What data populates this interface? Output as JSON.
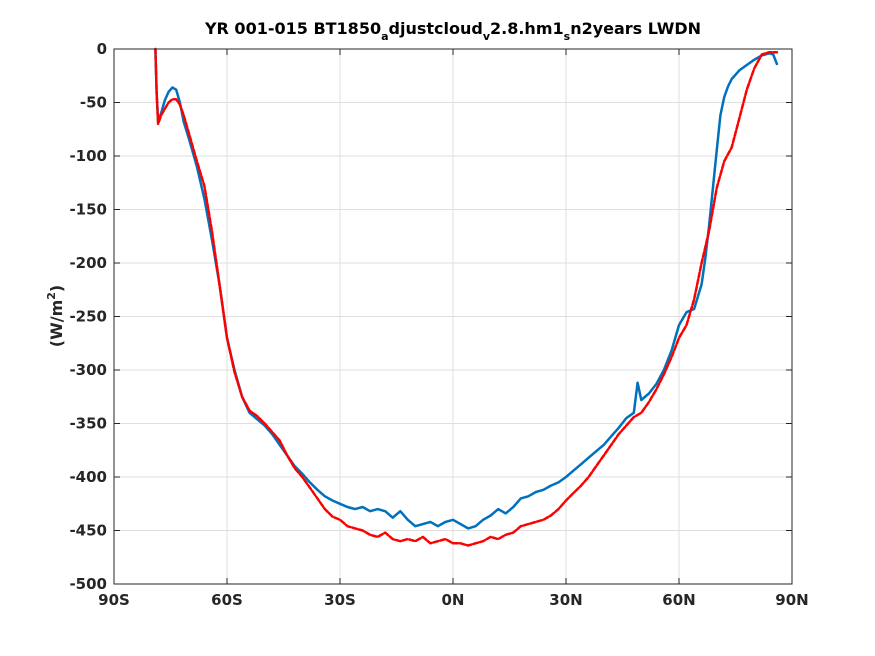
{
  "chart_data": {
    "type": "line",
    "title": {
      "p1": "YR 001-015 BT1850",
      "s1": "a",
      "p2": "djustcloud",
      "s2": "v",
      "p3": "2.8.hm1",
      "s3": "s",
      "p4": "n2years LWDN"
    },
    "ylabel": {
      "base": "(W/m",
      "sup": "2",
      "close": ")"
    },
    "xlim": [
      -90,
      90
    ],
    "ylim": [
      -500,
      0
    ],
    "xticks": [
      {
        "value": -90,
        "label": "90S"
      },
      {
        "value": -60,
        "label": "60S"
      },
      {
        "value": -30,
        "label": "30S"
      },
      {
        "value": 0,
        "label": "0N"
      },
      {
        "value": 30,
        "label": "30N"
      },
      {
        "value": 60,
        "label": "60N"
      },
      {
        "value": 90,
        "label": "90N"
      }
    ],
    "yticks": [
      {
        "value": 0,
        "label": "0"
      },
      {
        "value": -50,
        "label": "-50"
      },
      {
        "value": -100,
        "label": "-100"
      },
      {
        "value": -150,
        "label": "-150"
      },
      {
        "value": -200,
        "label": "-200"
      },
      {
        "value": -250,
        "label": "-250"
      },
      {
        "value": -300,
        "label": "-300"
      },
      {
        "value": -350,
        "label": "-350"
      },
      {
        "value": -400,
        "label": "-400"
      },
      {
        "value": -450,
        "label": "-450"
      },
      {
        "value": -500,
        "label": "-500"
      }
    ],
    "grid": true,
    "series": [
      {
        "color": "#0072BD",
        "style": "solid",
        "x": [
          -79,
          -78.7,
          -78.3,
          -77.5,
          -76.5,
          -75.5,
          -74.5,
          -73.5,
          -72.5,
          -71.5,
          -70,
          -68,
          -66,
          -64,
          -62,
          -60,
          -58,
          -56,
          -54,
          -52,
          -50,
          -48,
          -46,
          -44,
          -42,
          -40,
          -38,
          -36,
          -34,
          -32,
          -30,
          -28,
          -26,
          -24,
          -22,
          -20,
          -18,
          -16,
          -14,
          -12,
          -10,
          -8,
          -6,
          -4,
          -2,
          0,
          2,
          4,
          6,
          8,
          10,
          12,
          14,
          16,
          18,
          20,
          22,
          24,
          26,
          28,
          30,
          32,
          34,
          36,
          38,
          40,
          42,
          44,
          46,
          48,
          49,
          50,
          52,
          54,
          56,
          58,
          60,
          62,
          64,
          66,
          67,
          68,
          69,
          70,
          71,
          72,
          73,
          74,
          76,
          78,
          80,
          82,
          84,
          85,
          86
        ],
        "y": [
          0,
          -40,
          -68,
          -60,
          -48,
          -40,
          -36,
          -38,
          -50,
          -68,
          -85,
          -110,
          -140,
          -178,
          -220,
          -270,
          -300,
          -325,
          -340,
          -346,
          -352,
          -360,
          -370,
          -380,
          -390,
          -397,
          -405,
          -412,
          -418,
          -422,
          -425,
          -428,
          -430,
          -428,
          -432,
          -430,
          -432,
          -438,
          -432,
          -440,
          -446,
          -444,
          -442,
          -446,
          -442,
          -440,
          -444,
          -448,
          -446,
          -440,
          -436,
          -430,
          -434,
          -428,
          -420,
          -418,
          -414,
          -412,
          -408,
          -405,
          -400,
          -394,
          -388,
          -382,
          -376,
          -370,
          -362,
          -354,
          -345,
          -340,
          -312,
          -328,
          -322,
          -313,
          -300,
          -282,
          -258,
          -246,
          -243,
          -220,
          -195,
          -165,
          -130,
          -95,
          -62,
          -45,
          -35,
          -28,
          -20,
          -15,
          -10,
          -6,
          -4,
          -5,
          -14
        ]
      },
      {
        "color": "#FF0000",
        "style": "dashed",
        "x": [
          -79,
          -78.7,
          -78.3,
          -77.5,
          -76.5,
          -75.5,
          -74.5,
          -73.5,
          -72.5,
          -71.5,
          -70,
          -68,
          -66,
          -64,
          -62,
          -60,
          -58,
          -56,
          -54,
          -52,
          -50,
          -48,
          -46,
          -44,
          -42,
          -40,
          -38,
          -36,
          -34,
          -32,
          -30,
          -28,
          -26,
          -24,
          -22,
          -20,
          -18,
          -16,
          -14,
          -12,
          -10,
          -8,
          -6,
          -4,
          -2,
          0,
          2,
          4,
          6,
          8,
          10,
          12,
          14,
          16,
          18,
          20,
          22,
          24,
          26,
          28,
          30,
          32,
          34,
          36,
          38,
          40,
          42,
          44,
          46,
          48,
          50,
          52,
          54,
          56,
          58,
          60,
          62,
          64,
          66,
          68,
          70,
          72,
          74,
          76,
          78,
          80,
          82,
          84,
          85,
          86
        ],
        "y": [
          0,
          -40,
          -70,
          -62,
          -56,
          -50,
          -47,
          -47,
          -52,
          -62,
          -80,
          -105,
          -128,
          -170,
          -220,
          -270,
          -302,
          -325,
          -338,
          -343,
          -350,
          -358,
          -366,
          -380,
          -392,
          -400,
          -410,
          -420,
          -430,
          -437,
          -440,
          -446,
          -448,
          -450,
          -454,
          -456,
          -452,
          -458,
          -460,
          -458,
          -460,
          -456,
          -462,
          -460,
          -458,
          -462,
          -462,
          -464,
          -462,
          -460,
          -456,
          -458,
          -454,
          -452,
          -446,
          -444,
          -442,
          -440,
          -436,
          -430,
          -422,
          -415,
          -408,
          -400,
          -390,
          -380,
          -370,
          -360,
          -352,
          -344,
          -340,
          -330,
          -318,
          -304,
          -288,
          -270,
          -258,
          -234,
          -200,
          -170,
          -130,
          -105,
          -92,
          -65,
          -38,
          -18,
          -5,
          -3,
          -3,
          -3
        ]
      }
    ]
  }
}
